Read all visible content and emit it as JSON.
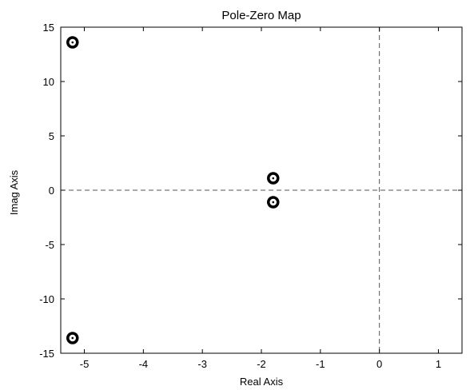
{
  "chart_data": {
    "type": "scatter",
    "title": "Pole-Zero Map",
    "xlabel": "Real Axis",
    "ylabel": "Imag Axis",
    "xlim": [
      -5.4,
      1.4
    ],
    "ylim": [
      -15,
      15
    ],
    "xticks": [
      -5,
      -4,
      -3,
      -2,
      -1,
      0,
      1
    ],
    "yticks": [
      -15,
      -10,
      -5,
      0,
      5,
      10,
      15
    ],
    "grid": false,
    "zero_lines": true,
    "marker": "circle-with-dot",
    "points": [
      {
        "x": -5.2,
        "y": 13.6
      },
      {
        "x": -5.2,
        "y": -13.6
      },
      {
        "x": -1.8,
        "y": 1.1
      },
      {
        "x": -1.8,
        "y": -1.1
      }
    ]
  }
}
